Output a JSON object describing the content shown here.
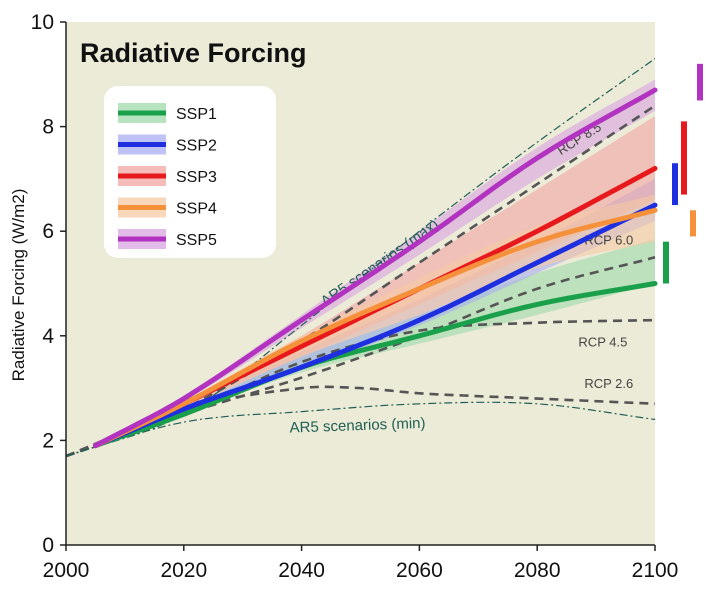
{
  "chart_data": {
    "type": "line",
    "title": "Radiative Forcing",
    "xlabel": "",
    "ylabel": "Radiative Forcing (W/m2)",
    "xlim": [
      2000,
      2100
    ],
    "ylim": [
      0,
      10
    ],
    "xticks": [
      2000,
      2020,
      2040,
      2060,
      2080,
      2100
    ],
    "yticks": [
      0,
      2,
      4,
      6,
      8,
      10
    ],
    "grid": false,
    "legend_position": "upper-left",
    "background_color": "#ecebd7",
    "series": [
      {
        "name": "SSP1",
        "color": "#1aa04a",
        "band_color": "#9fd9ac",
        "x": [
          2005,
          2020,
          2040,
          2060,
          2080,
          2100
        ],
        "y": [
          1.9,
          2.5,
          3.4,
          4.0,
          4.6,
          5.0
        ],
        "band_low": [
          1.9,
          2.5,
          3.3,
          3.85,
          4.4,
          5.0
        ],
        "band_high": [
          1.9,
          2.6,
          3.6,
          4.4,
          5.2,
          5.85
        ]
      },
      {
        "name": "SSP2",
        "color": "#1e2fe0",
        "band_color": "#a9aef0",
        "x": [
          2005,
          2020,
          2040,
          2060,
          2080,
          2100
        ],
        "y": [
          1.9,
          2.6,
          3.4,
          4.3,
          5.4,
          6.5
        ],
        "band_low": [
          1.9,
          2.55,
          3.35,
          4.2,
          5.2,
          6.2
        ],
        "band_high": [
          1.9,
          2.7,
          3.7,
          4.7,
          5.8,
          7.0
        ]
      },
      {
        "name": "SSP3",
        "color": "#e8191c",
        "band_color": "#f1a5a3",
        "x": [
          2005,
          2020,
          2040,
          2060,
          2080,
          2100
        ],
        "y": [
          1.9,
          2.7,
          3.8,
          4.9,
          6.0,
          7.2
        ],
        "band_low": [
          1.9,
          2.65,
          3.6,
          4.6,
          5.6,
          6.6
        ],
        "band_high": [
          1.9,
          2.75,
          4.0,
          5.4,
          6.8,
          8.2
        ]
      },
      {
        "name": "SSP4",
        "color": "#f4913a",
        "band_color": "#f6c9a3",
        "x": [
          2005,
          2020,
          2040,
          2060,
          2080,
          2100
        ],
        "y": [
          1.9,
          2.7,
          3.9,
          4.9,
          5.8,
          6.4
        ],
        "band_low": [
          1.9,
          2.6,
          3.6,
          4.4,
          5.3,
          5.8
        ],
        "band_high": [
          1.9,
          2.75,
          4.0,
          5.1,
          6.1,
          6.7
        ]
      },
      {
        "name": "SSP5",
        "color": "#b233c0",
        "band_color": "#d9a4e0",
        "x": [
          2005,
          2020,
          2040,
          2060,
          2080,
          2100
        ],
        "y": [
          1.9,
          2.8,
          4.3,
          5.8,
          7.4,
          8.7
        ],
        "band_low": [
          1.9,
          2.75,
          4.15,
          5.55,
          7.0,
          8.3
        ],
        "band_high": [
          1.9,
          2.85,
          4.4,
          6.0,
          7.6,
          8.9
        ]
      }
    ],
    "reference_lines": [
      {
        "name": "RCP 8.5",
        "label": "RCP 8.5",
        "style": "dashed",
        "x": [
          2000,
          2020,
          2040,
          2060,
          2080,
          2100
        ],
        "y": [
          1.7,
          2.6,
          3.9,
          5.4,
          6.9,
          8.4
        ]
      },
      {
        "name": "RCP 6.0",
        "label": "RCP 6.0",
        "style": "dashed",
        "x": [
          2000,
          2020,
          2040,
          2060,
          2080,
          2100
        ],
        "y": [
          1.7,
          2.5,
          3.2,
          4.0,
          4.9,
          5.5
        ]
      },
      {
        "name": "RCP 4.5",
        "label": "RCP 4.5",
        "style": "dashed",
        "x": [
          2000,
          2020,
          2040,
          2060,
          2080,
          2100
        ],
        "y": [
          1.7,
          2.5,
          3.5,
          4.1,
          4.25,
          4.3
        ]
      },
      {
        "name": "RCP 2.6",
        "label": "RCP 2.6",
        "style": "dashed",
        "x": [
          2000,
          2020,
          2040,
          2050,
          2060,
          2080,
          2100
        ],
        "y": [
          1.7,
          2.6,
          3.0,
          3.0,
          2.9,
          2.8,
          2.7
        ]
      },
      {
        "name": "AR5 scenarios (max)",
        "label": "AR5 scenarios (max)",
        "style": "dashdot",
        "x": [
          2000,
          2020,
          2040,
          2060,
          2080,
          2100
        ],
        "y": [
          1.7,
          2.5,
          4.2,
          6.0,
          7.7,
          9.3
        ]
      },
      {
        "name": "AR5 scenarios (min)",
        "label": "AR5 scenarios (min)",
        "style": "dashdot",
        "x": [
          2000,
          2020,
          2040,
          2060,
          2080,
          2100
        ],
        "y": [
          1.7,
          2.35,
          2.55,
          2.7,
          2.7,
          2.4
        ]
      }
    ],
    "range_bars_2100": [
      {
        "series": "SSP1",
        "low": 5.0,
        "high": 5.8
      },
      {
        "series": "SSP2",
        "low": 6.5,
        "high": 7.3
      },
      {
        "series": "SSP3",
        "low": 6.7,
        "high": 8.1
      },
      {
        "series": "SSP4",
        "low": 5.9,
        "high": 6.4
      },
      {
        "series": "SSP5",
        "low": 8.5,
        "high": 9.2
      }
    ]
  }
}
